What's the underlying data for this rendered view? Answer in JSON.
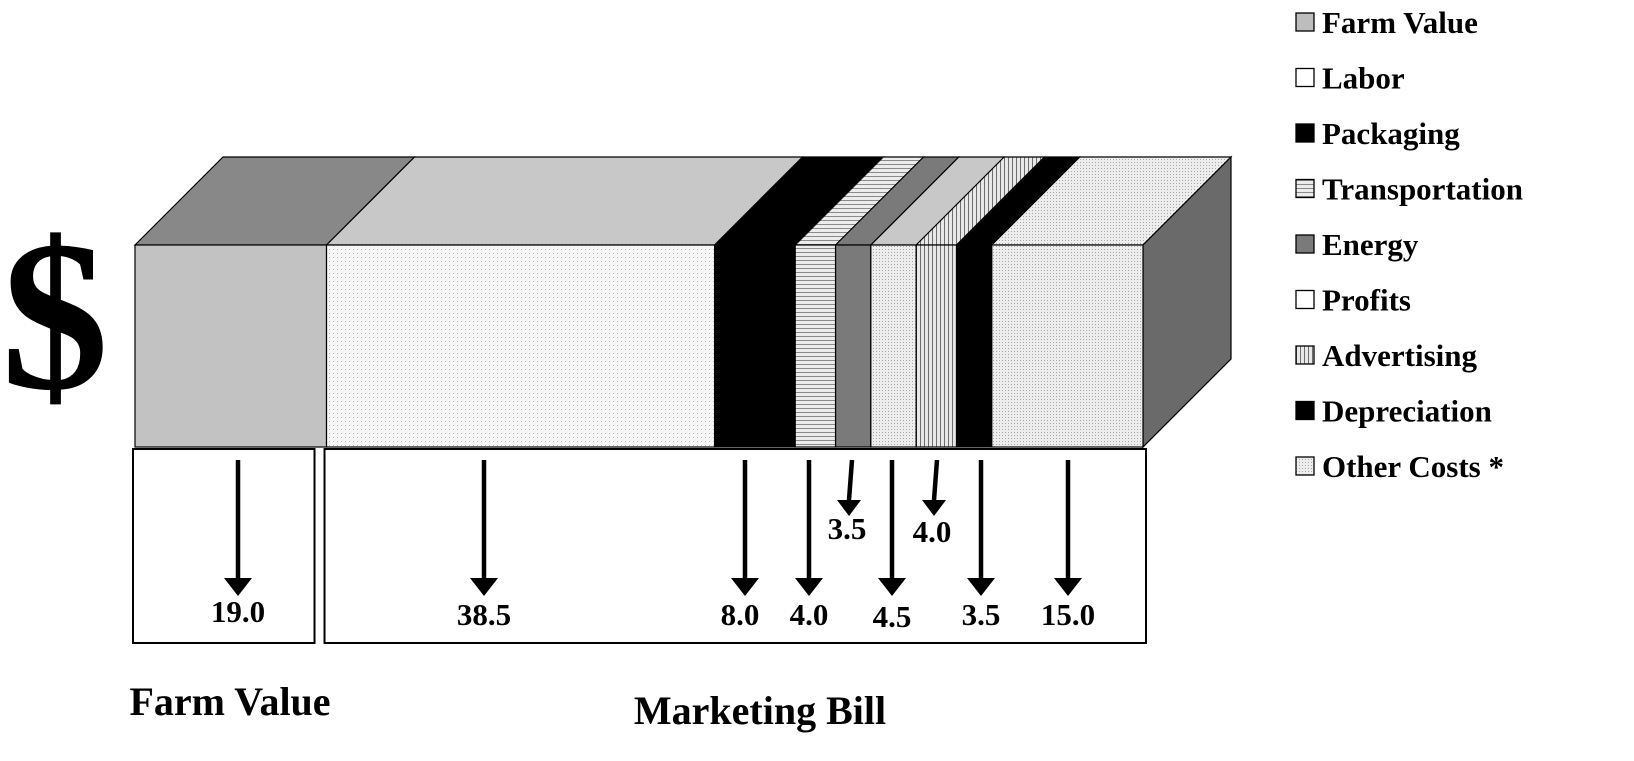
{
  "chart_data": {
    "type": "bar",
    "orientation": "horizontal-stacked",
    "currency_symbol": "$",
    "segments": [
      {
        "name": "Farm Value",
        "value": 19.0,
        "label": "19.0",
        "group": "farm"
      },
      {
        "name": "Labor",
        "value": 38.5,
        "label": "38.5",
        "group": "marketing"
      },
      {
        "name": "Packaging",
        "value": 8.0,
        "label": "8.0",
        "group": "marketing"
      },
      {
        "name": "Transportation",
        "value": 4.0,
        "label": "4.0",
        "group": "marketing"
      },
      {
        "name": "Energy",
        "value": 3.5,
        "label": "3.5",
        "group": "marketing"
      },
      {
        "name": "Profits",
        "value": 4.5,
        "label": "4.5",
        "group": "marketing"
      },
      {
        "name": "Advertising",
        "value": 4.0,
        "label": "4.0",
        "group": "marketing"
      },
      {
        "name": "Depreciation",
        "value": 3.5,
        "label": "3.5",
        "group": "marketing"
      },
      {
        "name": "Other Costs",
        "value": 15.0,
        "label": "15.0",
        "group": "marketing"
      }
    ],
    "groups": [
      {
        "key": "farm",
        "label": "Farm Value"
      },
      {
        "key": "marketing",
        "label": "Marketing Bill"
      }
    ],
    "legend": {
      "placement": "top-right",
      "entries": [
        "Farm Value",
        "Labor",
        "Packaging",
        "Transportation",
        "Energy",
        "Profits",
        "Advertising",
        "Depreciation",
        "Other Costs *"
      ]
    },
    "colors": {
      "Farm Value": "#c2c2c2",
      "Labor": "#f4f4f4",
      "Packaging": "#000000",
      "Transportation": "#dedede",
      "Energy": "#7a7a7a",
      "Profits": "#f0f0f0",
      "Advertising": "#d4d4d4",
      "Depreciation": "#000000",
      "Other Costs": "#e6e6e6",
      "side": "#6a6a6a"
    }
  }
}
